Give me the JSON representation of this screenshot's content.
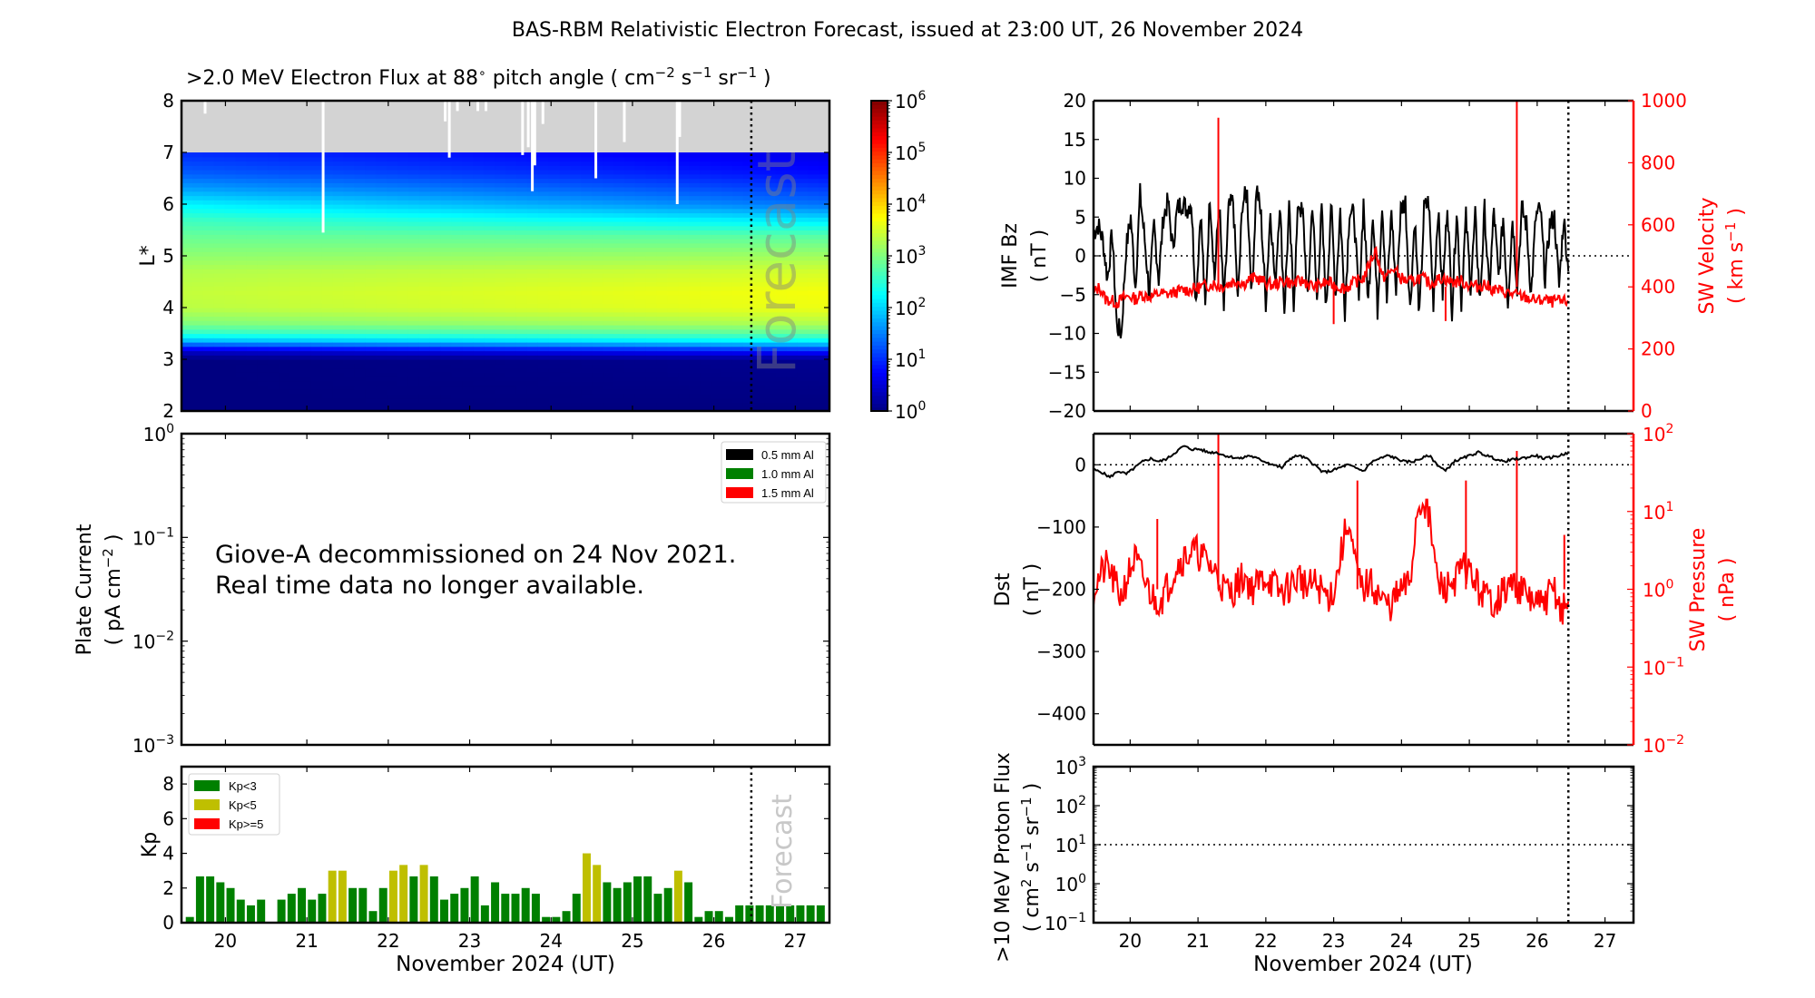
{
  "title": "BAS-RBM Relativistic Electron Forecast, issued at 23:00 UT, 26 November 2024",
  "chart_data": [
    {
      "id": "electron_flux",
      "type": "heatmap",
      "title": ">2.0 MeV Electron Flux at 88° pitch angle ( cm⁻² s⁻¹ sr⁻¹ )",
      "title_parts": {
        "main": ">2.0 MeV Electron Flux at 88",
        "deg": "∘",
        "units_open": " pitch angle ( cm",
        "sup1": "−2",
        "s": " s",
        "sup2": "−1",
        "sr": " sr",
        "sup3": "−1",
        "close": " )"
      },
      "ylabel": "L*",
      "ylim": [
        2,
        8
      ],
      "yticks": [
        "2",
        "3",
        "4",
        "5",
        "6",
        "7",
        "8"
      ],
      "xlim": [
        19.46,
        27.42
      ],
      "xticks": [
        20,
        21,
        22,
        23,
        24,
        25,
        26,
        27
      ],
      "no_data_above_L": 7,
      "no_data_color": "#d3d3d3",
      "forecast_line_x": 26.46,
      "forecast_label": "Forecast",
      "colorbar": {
        "scale": "log",
        "range_exp": [
          0,
          6
        ],
        "tick_labels": [
          "10",
          "10",
          "10",
          "10",
          "10",
          "10",
          "10"
        ],
        "tick_exps": [
          "0",
          "1",
          "2",
          "3",
          "4",
          "5",
          "6"
        ],
        "colormap": "jet"
      },
      "flux_profile_log10": {
        "L": [
          2.0,
          3.0,
          3.15,
          3.25,
          3.35,
          3.5,
          3.7,
          4.0,
          4.3,
          4.7,
          5.0,
          5.4,
          5.7,
          6.0,
          6.3,
          6.6,
          7.0
        ],
        "log_flux_early": [
          0.0,
          0.0,
          0.4,
          1.0,
          1.8,
          2.5,
          3.0,
          3.35,
          3.4,
          3.3,
          3.1,
          2.85,
          2.6,
          2.2,
          1.7,
          1.3,
          1.0
        ],
        "log_flux_late": [
          0.0,
          0.1,
          0.8,
          1.5,
          2.2,
          2.8,
          3.3,
          3.65,
          3.7,
          3.5,
          3.2,
          2.75,
          2.1,
          1.4,
          1.1,
          0.8,
          0.6
        ]
      },
      "white_gaps": [
        {
          "x": 19.75,
          "L_bottom": 7.75
        },
        {
          "x": 21.2,
          "L_bottom": 5.45
        },
        {
          "x": 22.7,
          "L_bottom": 7.6
        },
        {
          "x": 22.75,
          "L_bottom": 6.9
        },
        {
          "x": 22.85,
          "L_bottom": 7.8
        },
        {
          "x": 23.1,
          "L_bottom": 7.8
        },
        {
          "x": 23.2,
          "L_bottom": 7.8
        },
        {
          "x": 23.65,
          "L_bottom": 6.95
        },
        {
          "x": 23.72,
          "L_bottom": 7.1
        },
        {
          "x": 23.77,
          "L_bottom": 6.25
        },
        {
          "x": 23.8,
          "L_bottom": 6.75
        },
        {
          "x": 23.9,
          "L_bottom": 7.55
        },
        {
          "x": 24.55,
          "L_bottom": 6.5
        },
        {
          "x": 24.9,
          "L_bottom": 7.2
        },
        {
          "x": 25.55,
          "L_bottom": 6.0
        },
        {
          "x": 25.58,
          "L_bottom": 7.3
        }
      ]
    },
    {
      "id": "plate_current",
      "type": "line",
      "ylabel_line1": "Plate Current",
      "ylabel_line2_parts": {
        "open": "( pA cm",
        "sup": "−2",
        "close": " )"
      },
      "yscale": "log",
      "ylim_exp": [
        -3,
        0
      ],
      "ytick_exps": [
        "−3",
        "−2",
        "−1",
        "0"
      ],
      "xlim": [
        19.46,
        27.42
      ],
      "legend": [
        {
          "label": "0.5 mm Al",
          "color": "#000000"
        },
        {
          "label": "1.0 mm Al",
          "color": "#008000"
        },
        {
          "label": "1.5 mm Al",
          "color": "#ff0000"
        }
      ],
      "annotation_line1": "Giove-A decommissioned on 24 Nov 2021.",
      "annotation_line2": "Real time data no longer available.",
      "series": []
    },
    {
      "id": "kp",
      "type": "bar",
      "ylabel": "Kp",
      "ylim": [
        0,
        9
      ],
      "yticks": [
        "0",
        "2",
        "4",
        "6",
        "8"
      ],
      "xlim": [
        19.46,
        27.42
      ],
      "xticks": [
        "20",
        "21",
        "22",
        "23",
        "24",
        "25",
        "26",
        "27"
      ],
      "xlabel": "November 2024 (UT)",
      "bar_start": 19.5,
      "bar_width_days": 0.125,
      "forecast_line_x": 26.46,
      "forecast_label": "Forecast",
      "legend": [
        {
          "label": "Kp<3",
          "color": "#008000"
        },
        {
          "label": "Kp<5",
          "color": "#bfbf00"
        },
        {
          "label": "Kp>=5",
          "color": "#ff0000"
        }
      ],
      "values": [
        0.33,
        2.67,
        2.67,
        2.33,
        2.0,
        1.33,
        1.0,
        1.33,
        0.0,
        1.33,
        1.67,
        2.0,
        1.33,
        1.67,
        3.0,
        3.0,
        2.0,
        2.0,
        0.67,
        2.0,
        3.0,
        3.33,
        2.67,
        3.33,
        2.67,
        1.33,
        1.67,
        2.0,
        2.67,
        1.0,
        2.33,
        1.67,
        1.67,
        2.0,
        1.67,
        0.33,
        0.33,
        0.67,
        1.67,
        4.0,
        3.33,
        2.33,
        2.0,
        2.33,
        2.67,
        2.67,
        1.67,
        2.0,
        3.0,
        2.33,
        0.33,
        0.67,
        0.67,
        0.33,
        1.0,
        1.0,
        1.0,
        1.0,
        1.0,
        1.0,
        1.0,
        1.0,
        1.0
      ]
    },
    {
      "id": "imf_sw_velocity",
      "type": "line",
      "ylabel_left_line1": "IMF Bz",
      "ylabel_left_line2": "( nT )",
      "ylim_left": [
        -20,
        20
      ],
      "yticks_left": [
        "−20",
        "−15",
        "−10",
        "−5",
        "0",
        "5",
        "10",
        "15",
        "20"
      ],
      "ylabel_right_line1": "SW Velocity",
      "ylabel_right_line2_parts": {
        "open": "( km s",
        "sup": "−1",
        "close": " )"
      },
      "ylim_right": [
        0,
        1000
      ],
      "yticks_right": [
        "0",
        "200",
        "400",
        "600",
        "800",
        "1000"
      ],
      "xlim": [
        19.46,
        27.42
      ],
      "forecast_line_x": 26.46,
      "zero_line": 0,
      "series": [
        {
          "name": "IMF Bz (nT)",
          "color": "#000000",
          "x_start": 19.46,
          "x_end": 26.46,
          "values": [
            3,
            4,
            2,
            -3,
            3,
            -9,
            -10,
            1,
            5,
            -4,
            8,
            2,
            -5,
            4,
            -3,
            5,
            7,
            1,
            6,
            7,
            6,
            7,
            -6,
            6,
            -7,
            8,
            -3,
            7,
            -7,
            6,
            7,
            -6,
            7,
            8,
            -5,
            9,
            5,
            -6,
            6,
            -4,
            7,
            -7,
            6,
            -6,
            7,
            5,
            -6,
            7,
            -6,
            6,
            -7,
            7,
            -5,
            6,
            -7,
            6,
            5,
            -6,
            7,
            -6,
            6,
            -7,
            7,
            -6,
            6,
            -5,
            6,
            7,
            -7,
            5,
            -8,
            6,
            7,
            -6,
            6,
            -5,
            7,
            -7,
            6,
            -6,
            5,
            -4,
            5,
            -6,
            6,
            -5,
            6,
            -3,
            5,
            -6,
            5,
            -4,
            6,
            4,
            -5,
            5,
            6,
            -3,
            4,
            5,
            -4,
            5,
            -2
          ]
        },
        {
          "name": "SW Velocity (km/s)",
          "color": "#ff0000",
          "x_start": 19.46,
          "x_end": 26.46,
          "axis": "right",
          "values": [
            380,
            400,
            360,
            355,
            350,
            365,
            370,
            360,
            375,
            370,
            370,
            380,
            375,
            380,
            385,
            390,
            390,
            395,
            400,
            405,
            410,
            400,
            405,
            415,
            420,
            410,
            425,
            430,
            420,
            410,
            405,
            415,
            420,
            410,
            415,
            420,
            405,
            400,
            410,
            415,
            405,
            400,
            395,
            410,
            420,
            430,
            480,
            520,
            430,
            440,
            460,
            430,
            420,
            415,
            430,
            425,
            410,
            420,
            430,
            420,
            415,
            420,
            410,
            405,
            400,
            410,
            395,
            390,
            385,
            380,
            375,
            370,
            365,
            360,
            355,
            360,
            350,
            355,
            350,
            355
          ],
          "spikes": [
            {
              "x": 21.3,
              "value": 945
            },
            {
              "x": 25.7,
              "value": 1000
            },
            {
              "x": 23.0,
              "value": 280
            },
            {
              "x": 24.65,
              "value": 290
            }
          ]
        }
      ]
    },
    {
      "id": "dst_sw_pressure",
      "type": "line",
      "ylabel_left_line1": "Dst",
      "ylabel_left_line2": "( nT )",
      "ylim_left": [
        -450,
        50
      ],
      "yticks_left": [
        "−400",
        "−300",
        "−200",
        "−100",
        "0"
      ],
      "ylabel_right_line1": "SW Pressure",
      "ylabel_right_line2": "( nPa )",
      "yscale_right": "log",
      "ylim_right_exp": [
        -2,
        2
      ],
      "yticks_right_exps": [
        "−2",
        "−1",
        "0",
        "1",
        "2"
      ],
      "xlim": [
        19.46,
        27.42
      ],
      "forecast_line_x": 26.46,
      "zero_line": 0,
      "series": [
        {
          "name": "Dst (nT)",
          "color": "#000000",
          "x_start": 19.46,
          "x_end": 26.46,
          "values": [
            -8,
            -12,
            -20,
            -10,
            -15,
            -5,
            5,
            10,
            5,
            10,
            20,
            30,
            25,
            25,
            20,
            20,
            15,
            12,
            10,
            15,
            10,
            5,
            0,
            -5,
            10,
            15,
            10,
            0,
            -12,
            -10,
            -5,
            0,
            -5,
            -10,
            5,
            10,
            15,
            10,
            5,
            5,
            10,
            15,
            0,
            -10,
            5,
            10,
            15,
            20,
            15,
            10,
            5,
            8,
            10,
            12,
            15,
            10,
            12,
            15,
            20
          ]
        },
        {
          "name": "SW Pressure (nPa)",
          "color": "#ff0000",
          "x_start": 19.46,
          "x_end": 26.46,
          "axis": "right",
          "scale": "log",
          "values": [
            1.0,
            1.5,
            2.0,
            1.2,
            0.8,
            1.5,
            2.5,
            1.5,
            1.0,
            0.7,
            0.8,
            1.2,
            2.0,
            2.5,
            3.0,
            3.0,
            2.5,
            2.0,
            1.5,
            1.0,
            0.9,
            1.2,
            1.5,
            1.0,
            1.2,
            1.5,
            1.2,
            0.9,
            1.0,
            1.2,
            1.5,
            1.0,
            1.2,
            1.0,
            0.8,
            1.0,
            3.0,
            8.0,
            2.0,
            1.0,
            1.2,
            1.0,
            0.7,
            0.6,
            0.8,
            1.0,
            1.2,
            10.0,
            15.0,
            6.0,
            1.2,
            1.0,
            1.2,
            1.5,
            2.0,
            1.5,
            1.0,
            0.8,
            0.7,
            0.8,
            1.0,
            1.2,
            1.0,
            0.8,
            0.7,
            0.6,
            0.8,
            1.0,
            0.5,
            0.7
          ],
          "spikes": [
            {
              "x": 21.3,
              "value": 100
            },
            {
              "x": 23.35,
              "value": 25
            },
            {
              "x": 24.95,
              "value": 25
            },
            {
              "x": 25.7,
              "value": 60
            },
            {
              "x": 26.4,
              "value": 5
            },
            {
              "x": 20.4,
              "value": 8
            }
          ]
        }
      ]
    },
    {
      "id": "proton_flux",
      "type": "line",
      "ylabel_line1": ">10 MeV Proton Flux",
      "ylabel_line2_parts": {
        "open": "( cm",
        "sup1": "2",
        "s": " s",
        "sup2": "−1",
        "sr": " sr",
        "sup3": "−1",
        "close": " )"
      },
      "yscale": "log",
      "ylim_exp": [
        -1,
        3
      ],
      "ytick_exps": [
        "−1",
        "0",
        "1",
        "2",
        "3"
      ],
      "threshold": 10,
      "xlim": [
        19.46,
        27.42
      ],
      "xticks": [
        "20",
        "21",
        "22",
        "23",
        "24",
        "25",
        "26",
        "27"
      ],
      "xlabel": "November 2024 (UT)",
      "forecast_line_x": 26.46,
      "series": []
    }
  ]
}
